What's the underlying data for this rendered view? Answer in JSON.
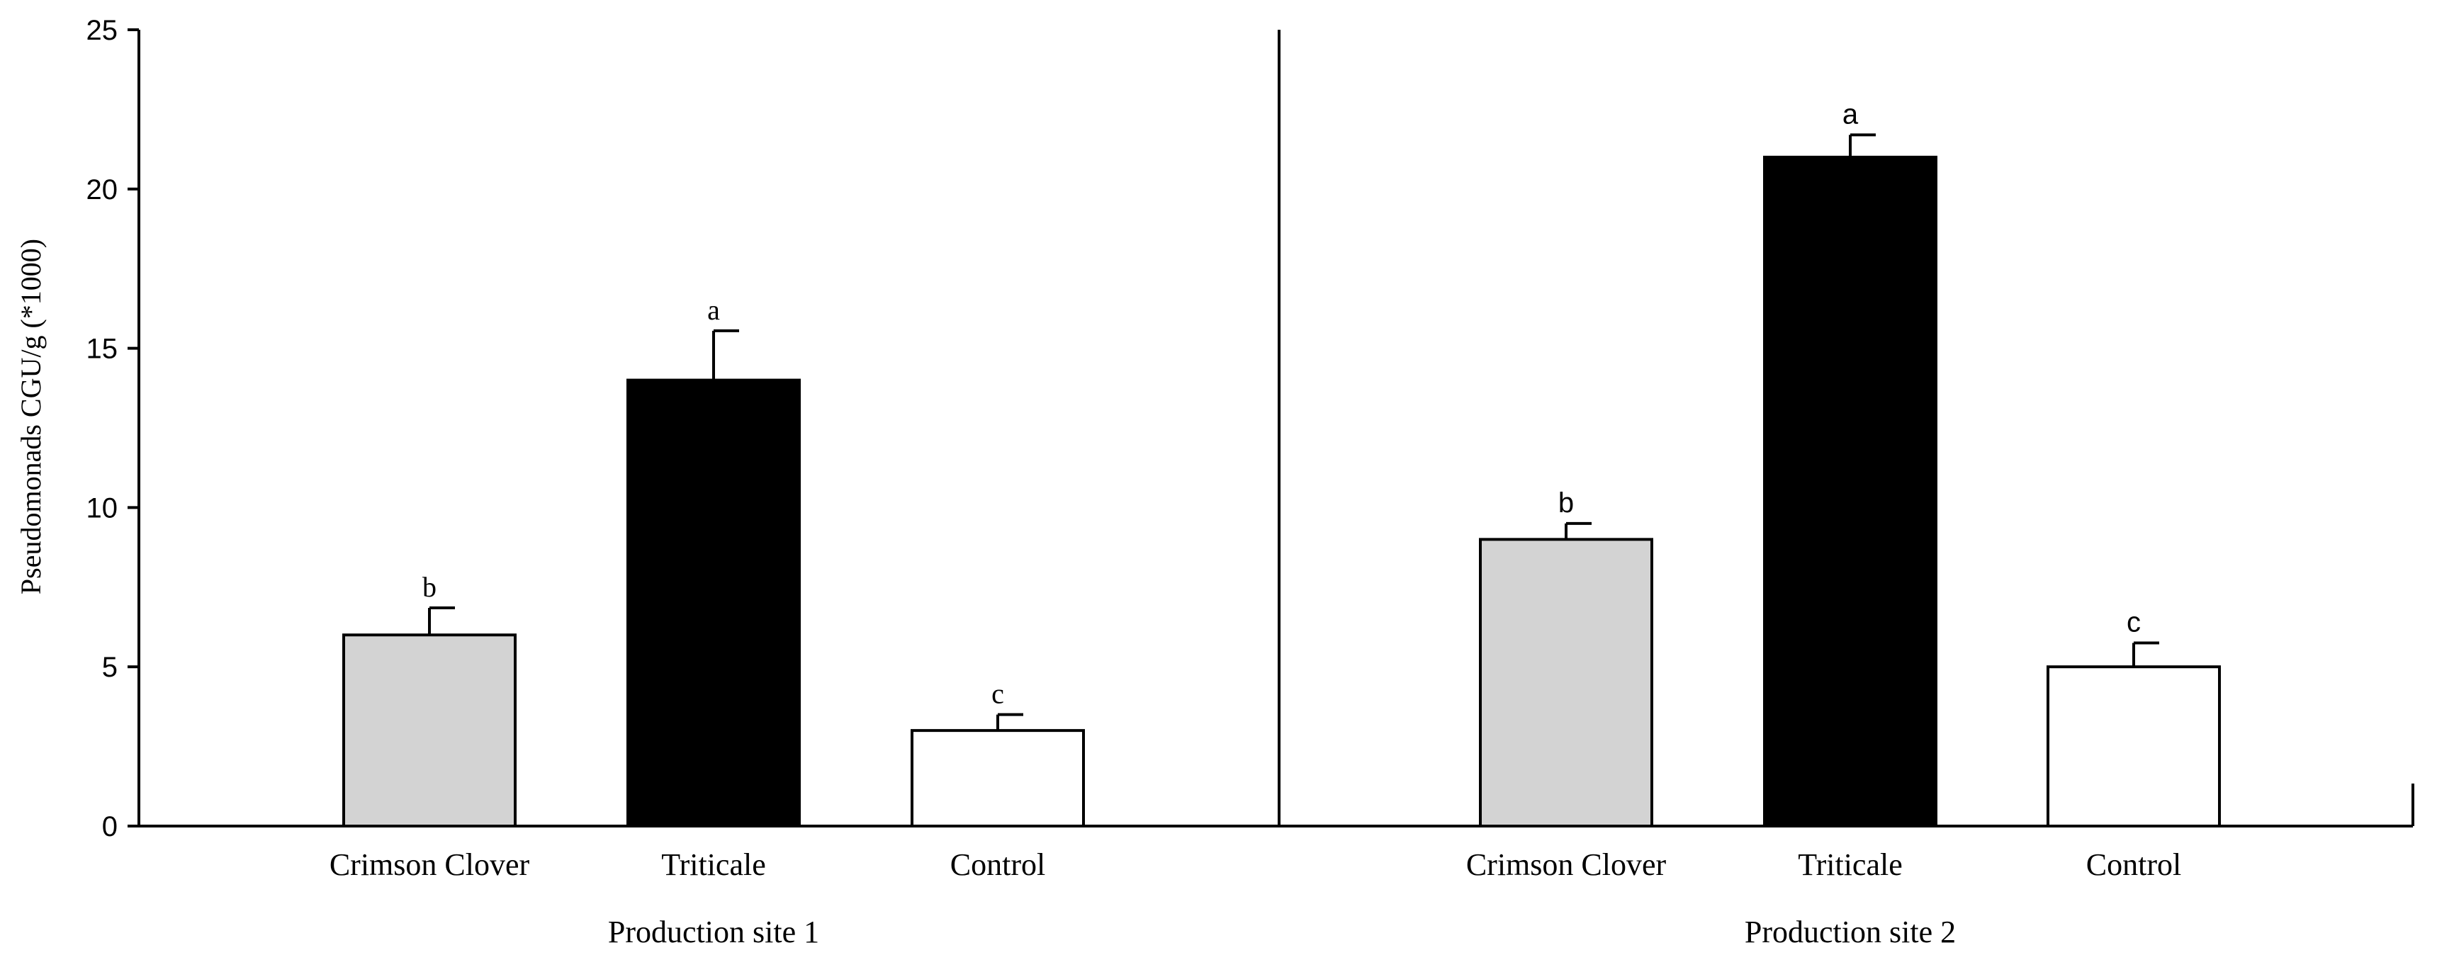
{
  "chart_data": {
    "type": "bar",
    "ylabel": "Pseudomonads CGU/g (*1000)",
    "ylim": [
      0,
      25
    ],
    "yticks": [
      0,
      5,
      10,
      15,
      20,
      25
    ],
    "grid": false,
    "panels": [
      {
        "xlabel": "Production site 1",
        "bars": [
          {
            "category": "Crimson Clover",
            "value": 6.0,
            "error": 0.85,
            "letter": "b",
            "fill": "#d3d3d3"
          },
          {
            "category": "Triticale",
            "value": 14.0,
            "error": 1.55,
            "letter": "a",
            "fill": "#000000"
          },
          {
            "category": "Control",
            "value": 3.0,
            "error": 0.5,
            "letter": "c",
            "fill": "#ffffff"
          }
        ]
      },
      {
        "xlabel": "Production site 2",
        "bars": [
          {
            "category": "Crimson Clover",
            "value": 9.0,
            "error": 0.5,
            "letter": "b",
            "fill": "#d3d3d3"
          },
          {
            "category": "Triticale",
            "value": 21.0,
            "error": 0.7,
            "letter": "a",
            "fill": "#000000"
          },
          {
            "category": "Control",
            "value": 5.0,
            "error": 0.75,
            "letter": "c",
            "fill": "#ffffff"
          }
        ]
      }
    ]
  }
}
